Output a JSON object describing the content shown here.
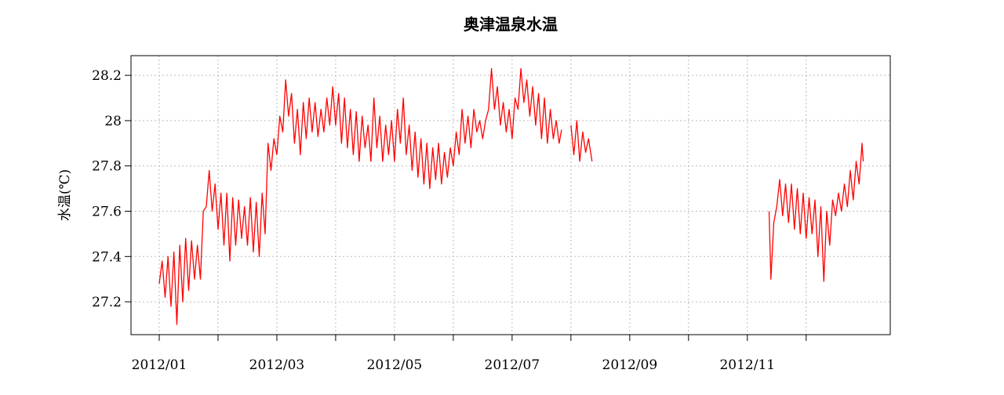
{
  "chart_data": {
    "type": "line",
    "title": "奥津温泉水温",
    "y_label": "水温(℃)",
    "x": [
      1.0,
      1.05,
      1.1,
      1.15,
      1.2,
      1.25,
      1.3,
      1.35,
      1.4,
      1.45,
      1.5,
      1.55,
      1.6,
      1.65,
      1.7,
      1.75,
      1.8,
      1.85,
      1.9,
      1.95,
      2.0,
      2.05,
      2.1,
      2.15,
      2.2,
      2.25,
      2.3,
      2.35,
      2.4,
      2.45,
      2.5,
      2.55,
      2.6,
      2.65,
      2.7,
      2.75,
      2.8,
      2.85,
      2.9,
      2.95,
      3.0,
      3.05,
      3.1,
      3.15,
      3.2,
      3.25,
      3.3,
      3.35,
      3.4,
      3.45,
      3.5,
      3.55,
      3.6,
      3.65,
      3.7,
      3.75,
      3.8,
      3.85,
      3.9,
      3.95,
      4.0,
      4.05,
      4.1,
      4.15,
      4.2,
      4.25,
      4.3,
      4.35,
      4.4,
      4.45,
      4.5,
      4.55,
      4.6,
      4.65,
      4.7,
      4.75,
      4.8,
      4.85,
      4.9,
      4.95,
      5.0,
      5.05,
      5.1,
      5.15,
      5.2,
      5.25,
      5.3,
      5.35,
      5.4,
      5.45,
      5.5,
      5.55,
      5.6,
      5.65,
      5.7,
      5.75,
      5.8,
      5.85,
      5.9,
      5.95,
      6.0,
      6.05,
      6.1,
      6.15,
      6.2,
      6.25,
      6.3,
      6.35,
      6.4,
      6.45,
      6.5,
      6.55,
      6.6,
      6.65,
      6.7,
      6.75,
      6.8,
      6.85,
      6.9,
      6.95,
      7.0,
      7.05,
      7.1,
      7.15,
      7.2,
      7.25,
      7.3,
      7.35,
      7.4,
      7.45,
      7.5,
      7.55,
      7.6,
      7.65,
      7.7,
      7.75,
      7.8,
      7.84,
      7.9,
      8.0,
      8.05,
      8.1,
      8.15,
      8.2,
      8.25,
      8.3,
      8.36,
      9.0,
      11.37,
      11.4,
      11.45,
      11.5,
      11.55,
      11.6,
      11.65,
      11.7,
      11.75,
      11.8,
      11.85,
      11.9,
      11.95,
      12.0,
      12.05,
      12.1,
      12.15,
      12.2,
      12.25,
      12.3,
      12.35,
      12.4,
      12.45,
      12.5,
      12.55,
      12.6,
      12.65,
      12.7,
      12.75,
      12.8,
      12.85,
      12.9,
      12.95,
      12.97
    ],
    "series": [
      {
        "name": "水温",
        "color": "#ff0000",
        "values": [
          27.28,
          27.38,
          27.22,
          27.4,
          27.18,
          27.42,
          27.1,
          27.45,
          27.2,
          27.48,
          27.25,
          27.47,
          27.3,
          27.45,
          27.3,
          27.6,
          27.62,
          27.78,
          27.6,
          27.72,
          27.52,
          27.68,
          27.45,
          27.68,
          27.38,
          27.66,
          27.45,
          27.65,
          27.48,
          27.62,
          27.45,
          27.66,
          27.42,
          27.64,
          27.4,
          27.68,
          27.5,
          27.9,
          27.78,
          27.92,
          27.85,
          28.02,
          27.95,
          28.18,
          28.02,
          28.12,
          27.9,
          28.05,
          27.85,
          28.08,
          27.92,
          28.1,
          27.95,
          28.08,
          27.93,
          28.05,
          27.95,
          28.1,
          27.98,
          28.15,
          27.98,
          28.12,
          27.9,
          28.1,
          27.88,
          28.05,
          27.85,
          28.04,
          27.82,
          28.02,
          27.88,
          27.98,
          27.82,
          28.1,
          27.88,
          28.02,
          27.82,
          27.98,
          27.85,
          28.0,
          27.82,
          28.05,
          27.9,
          28.1,
          27.85,
          27.98,
          27.78,
          27.95,
          27.75,
          27.92,
          27.72,
          27.9,
          27.7,
          27.88,
          27.74,
          27.9,
          27.72,
          27.86,
          27.75,
          27.88,
          27.8,
          27.95,
          27.85,
          28.05,
          27.9,
          28.02,
          27.88,
          28.05,
          27.95,
          28.0,
          27.92,
          28.0,
          28.05,
          28.23,
          28.05,
          28.15,
          27.98,
          28.08,
          27.95,
          28.05,
          27.92,
          28.1,
          28.05,
          28.23,
          28.08,
          28.18,
          28.02,
          28.15,
          27.98,
          28.12,
          27.92,
          28.1,
          27.9,
          28.05,
          27.92,
          28.0,
          27.9,
          27.96,
          null,
          27.98,
          27.85,
          28.0,
          27.82,
          27.95,
          27.86,
          27.92,
          27.82,
          null,
          27.6,
          27.3,
          27.55,
          27.62,
          27.74,
          27.58,
          27.72,
          27.55,
          27.72,
          27.52,
          27.7,
          27.5,
          27.68,
          27.48,
          27.66,
          27.5,
          27.65,
          27.4,
          27.62,
          27.29,
          27.6,
          27.45,
          27.65,
          27.58,
          27.68,
          27.6,
          27.72,
          27.62,
          27.78,
          27.65,
          27.82,
          27.72,
          27.9,
          27.82
        ]
      }
    ],
    "xlim": [
      0.52,
      13.43
    ],
    "xticks": [
      {
        "value": 1,
        "label": "2012/01"
      },
      {
        "value": 3,
        "label": "2012/03"
      },
      {
        "value": 5,
        "label": "2012/05"
      },
      {
        "value": 7,
        "label": "2012/07"
      },
      {
        "value": 9,
        "label": "2012/09"
      },
      {
        "value": 11,
        "label": "2012/11"
      }
    ],
    "minor_xticks": [
      2,
      4,
      6,
      8,
      10,
      12
    ],
    "ylim": [
      27.055,
      28.287
    ],
    "yticks": [
      27.2,
      27.4,
      27.6,
      27.8,
      28.0,
      28.2
    ],
    "grid": true
  }
}
